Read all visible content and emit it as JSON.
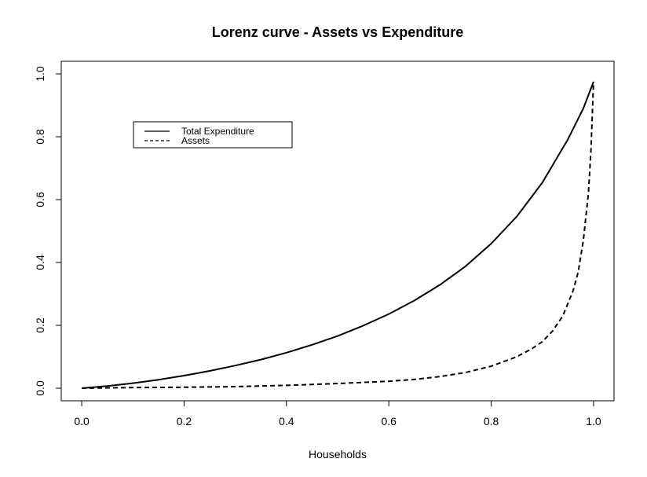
{
  "chart_data": {
    "type": "line",
    "title": "Lorenz curve - Assets vs Expenditure",
    "xlabel": "Households",
    "ylabel": "",
    "xlim": [
      -0.04,
      1.04
    ],
    "ylim": [
      -0.04,
      1.04
    ],
    "x_ticks": [
      "0.0",
      "0.2",
      "0.4",
      "0.6",
      "0.8",
      "1.0"
    ],
    "y_ticks": [
      "0.0",
      "0.2",
      "0.4",
      "0.6",
      "0.8",
      "1.0"
    ],
    "grid": false,
    "legend_position": "top-left",
    "series": [
      {
        "name": "Total Expenditure",
        "line_style": "solid",
        "x": [
          0,
          0.05,
          0.1,
          0.15,
          0.2,
          0.25,
          0.3,
          0.35,
          0.4,
          0.45,
          0.5,
          0.55,
          0.6,
          0.65,
          0.7,
          0.75,
          0.8,
          0.85,
          0.9,
          0.95,
          0.98,
          1.0
        ],
        "y": [
          0,
          0.007,
          0.016,
          0.027,
          0.04,
          0.055,
          0.072,
          0.091,
          0.113,
          0.138,
          0.166,
          0.199,
          0.236,
          0.279,
          0.329,
          0.388,
          0.46,
          0.546,
          0.654,
          0.792,
          0.89,
          0.975
        ]
      },
      {
        "name": "Assets",
        "line_style": "dashed",
        "x": [
          0,
          0.1,
          0.2,
          0.3,
          0.4,
          0.5,
          0.6,
          0.65,
          0.7,
          0.75,
          0.8,
          0.85,
          0.88,
          0.9,
          0.92,
          0.94,
          0.96,
          0.97,
          0.98,
          0.99,
          0.995,
          1.0
        ],
        "y": [
          0,
          0.002,
          0.003,
          0.005,
          0.009,
          0.015,
          0.022,
          0.028,
          0.037,
          0.05,
          0.07,
          0.1,
          0.126,
          0.148,
          0.182,
          0.23,
          0.31,
          0.37,
          0.47,
          0.62,
          0.76,
          0.975
        ]
      }
    ]
  }
}
